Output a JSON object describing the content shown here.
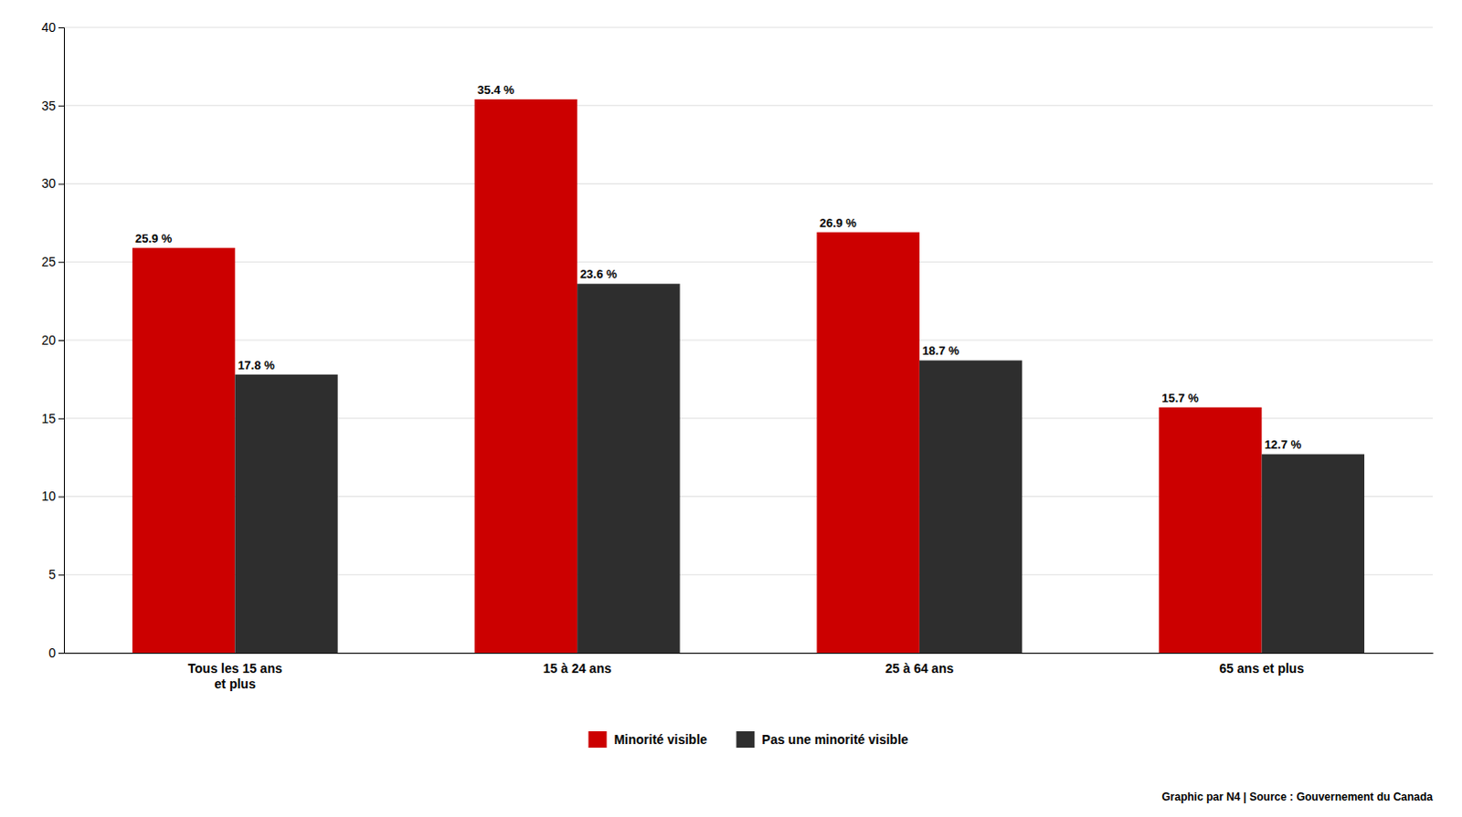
{
  "chart_data": {
    "type": "bar",
    "categories": [
      "Tous les 15 ans\net plus",
      "15 à 24 ans",
      "25 à 64 ans",
      "65 ans et plus"
    ],
    "series": [
      {
        "name": "Minorité visible",
        "color": "#cc0000",
        "values": [
          25.9,
          35.4,
          26.9,
          15.7
        ],
        "value_labels": [
          "25.9 %",
          "35.4 %",
          "26.9 %",
          "15.7 %"
        ]
      },
      {
        "name": "Pas une minorité visible",
        "color": "#2e2e2e",
        "values": [
          17.8,
          23.6,
          18.7,
          12.7
        ],
        "value_labels": [
          "17.8 %",
          "23.6 %",
          "18.7 %",
          "12.7 %"
        ]
      }
    ],
    "ylim": [
      0,
      40
    ],
    "yticks": [
      0,
      5,
      10,
      15,
      20,
      25,
      30,
      35,
      40
    ],
    "grid": true,
    "data_labels": true,
    "legend": "bottom",
    "annotations": [
      "Graphic par N4 | Source : Gouvernement du Canada"
    ]
  }
}
